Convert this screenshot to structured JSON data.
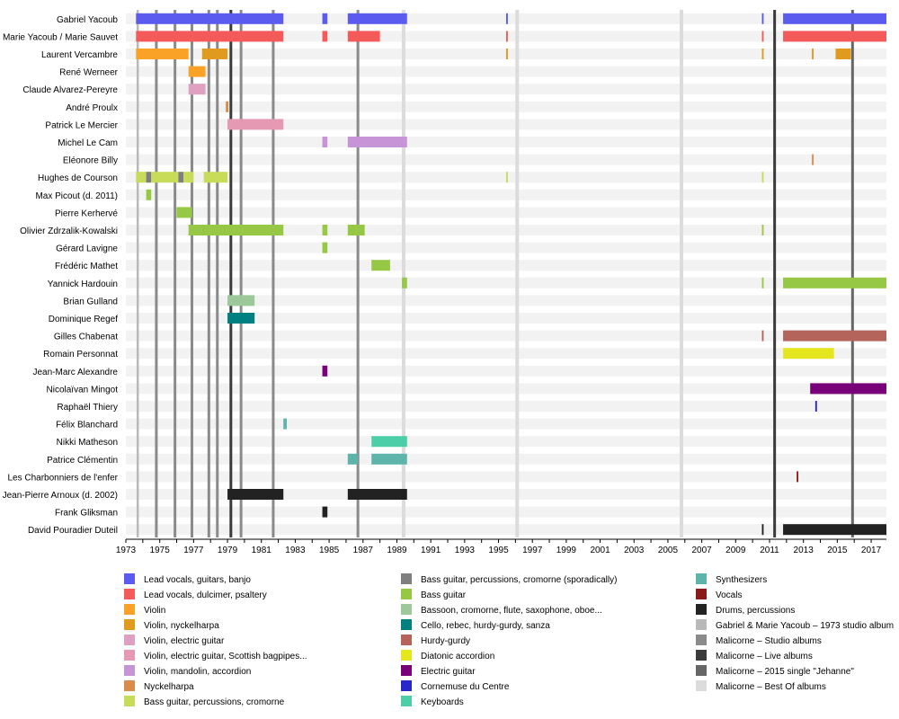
{
  "chart_data": {
    "type": "timeline",
    "title": "",
    "xlabel": "",
    "ylabel": "",
    "xlim": [
      1973.0,
      2017.9
    ],
    "x_ticks": [
      1973,
      1975,
      1977,
      1979,
      1981,
      1983,
      1985,
      1987,
      1989,
      1991,
      1993,
      1995,
      1997,
      1999,
      2001,
      2003,
      2005,
      2007,
      2009,
      2011,
      2013,
      2015,
      2017
    ],
    "members": [
      "Gabriel Yacoub",
      "Marie Yacoub / Marie Sauvet",
      "Laurent Vercambre",
      "René Werneer",
      "Claude Alvarez-Pereyre",
      "André Proulx",
      "Patrick Le Mercier",
      "Michel Le Cam",
      "Eléonore Billy",
      "Hughes de Courson",
      "Max Picout (d. 2011)",
      "Pierre Kerhervé",
      "Olivier Zdrzalik-Kowalski",
      "Gérard Lavigne",
      "Frédéric Mathet",
      "Yannick Hardouin",
      "Brian Gulland",
      "Dominique Regef",
      "Gilles Chabenat",
      "Romain Personnat",
      "Jean-Marc Alexandre",
      "Nicolaïvan Mingot",
      "Raphaël Thiery",
      "Félix Blanchard",
      "Nikki Matheson",
      "Patrice Clémentin",
      "Les Charbonniers de l'enfer",
      "Jean-Pierre Arnoux (d. 2002)",
      "Frank Gliksman",
      "David Pouradier Duteil"
    ],
    "legend": [
      {
        "label": "Lead vocals, guitars, banjo",
        "color": "#5b5bf0"
      },
      {
        "label": "Lead vocals, dulcimer, psaltery",
        "color": "#f55a5a"
      },
      {
        "label": "Violin",
        "color": "#f9a227"
      },
      {
        "label": "Violin, nyckelharpa",
        "color": "#e09a1e"
      },
      {
        "label": "Violin, electric guitar",
        "color": "#e0a0c0"
      },
      {
        "label": "Violin, electric guitar, Scottish bagpipes...",
        "color": "#e699b3"
      },
      {
        "label": "Violin, mandolin, accordion",
        "color": "#c894d8"
      },
      {
        "label": "Nyckelharpa",
        "color": "#d98c4a"
      },
      {
        "label": "Bass guitar, percussions, cromorne",
        "color": "#c8dc5a"
      },
      {
        "label": "Bass guitar, percussions, cromorne (sporadically)",
        "color": "#7f7f7f"
      },
      {
        "label": "Bass guitar",
        "color": "#96c846"
      },
      {
        "label": "Bassoon, cromorne, flute, saxophone, oboe...",
        "color": "#9cc89a"
      },
      {
        "label": "Cello, rebec, hurdy-gurdy, sanza",
        "color": "#008080"
      },
      {
        "label": "Hurdy-gurdy",
        "color": "#b4645a"
      },
      {
        "label": "Diatonic accordion",
        "color": "#e6e61e"
      },
      {
        "label": "Electric guitar",
        "color": "#780078"
      },
      {
        "label": "Cornemuse du Centre",
        "color": "#2828c8"
      },
      {
        "label": "Keyboards",
        "color": "#4ccfa8"
      },
      {
        "label": "Synthesizers",
        "color": "#5cb4aa"
      },
      {
        "label": "Vocals",
        "color": "#8b1a1a"
      },
      {
        "label": "Drums, percussions",
        "color": "#222222"
      },
      {
        "label": "Gabriel & Marie Yacoub – 1973 studio album",
        "color": "#b9b9b9"
      },
      {
        "label": "Malicorne – Studio albums",
        "color": "#8a8a8a"
      },
      {
        "label": "Malicorne – Live albums",
        "color": "#3a3a3a"
      },
      {
        "label": "Malicorne – 2015 single \"Jehanne\"",
        "color": "#666666"
      },
      {
        "label": "Malicorne – Best Of albums",
        "color": "#dcdcdc"
      }
    ],
    "bars": [
      {
        "member": "Gabriel Yacoub",
        "start": 1973.6,
        "end": 1982.3,
        "series": "Lead vocals, guitars, banjo"
      },
      {
        "member": "Gabriel Yacoub",
        "start": 1984.6,
        "end": 1984.9,
        "series": "Lead vocals, guitars, banjo"
      },
      {
        "member": "Gabriel Yacoub",
        "start": 1986.1,
        "end": 1989.6,
        "series": "Lead vocals, guitars, banjo"
      },
      {
        "member": "Gabriel Yacoub",
        "start": 1995.45,
        "end": 1995.55,
        "series": "Lead vocals, guitars, banjo"
      },
      {
        "member": "Gabriel Yacoub",
        "start": 2010.55,
        "end": 2010.65,
        "series": "Lead vocals, guitars, banjo"
      },
      {
        "member": "Gabriel Yacoub",
        "start": 2011.8,
        "end": 2017.9,
        "series": "Lead vocals, guitars, banjo"
      },
      {
        "member": "Marie Yacoub / Marie Sauvet",
        "start": 1973.6,
        "end": 1982.3,
        "series": "Lead vocals, dulcimer, psaltery"
      },
      {
        "member": "Marie Yacoub / Marie Sauvet",
        "start": 1984.6,
        "end": 1984.9,
        "series": "Lead vocals, dulcimer, psaltery"
      },
      {
        "member": "Marie Yacoub / Marie Sauvet",
        "start": 1986.1,
        "end": 1988.0,
        "series": "Lead vocals, dulcimer, psaltery"
      },
      {
        "member": "Marie Yacoub / Marie Sauvet",
        "start": 1995.45,
        "end": 1995.55,
        "series": "Lead vocals, dulcimer, psaltery"
      },
      {
        "member": "Marie Yacoub / Marie Sauvet",
        "start": 2010.55,
        "end": 2010.65,
        "series": "Lead vocals, dulcimer, psaltery"
      },
      {
        "member": "Marie Yacoub / Marie Sauvet",
        "start": 2011.8,
        "end": 2017.9,
        "series": "Lead vocals, dulcimer, psaltery"
      },
      {
        "member": "Laurent Vercambre",
        "start": 1973.6,
        "end": 1976.7,
        "series": "Violin"
      },
      {
        "member": "Laurent Vercambre",
        "start": 1977.5,
        "end": 1979.0,
        "series": "Violin, nyckelharpa"
      },
      {
        "member": "Laurent Vercambre",
        "start": 1995.45,
        "end": 1995.55,
        "series": "Violin, nyckelharpa"
      },
      {
        "member": "Laurent Vercambre",
        "start": 2010.55,
        "end": 2010.65,
        "series": "Violin, nyckelharpa"
      },
      {
        "member": "Laurent Vercambre",
        "start": 2013.5,
        "end": 2013.6,
        "series": "Violin, nyckelharpa"
      },
      {
        "member": "Laurent Vercambre",
        "start": 2014.9,
        "end": 2015.8,
        "series": "Violin, nyckelharpa"
      },
      {
        "member": "René Werneer",
        "start": 1976.7,
        "end": 1977.7,
        "series": "Violin"
      },
      {
        "member": "Claude Alvarez-Pereyre",
        "start": 1976.7,
        "end": 1977.7,
        "series": "Violin, electric guitar"
      },
      {
        "member": "André Proulx",
        "start": 1978.9,
        "end": 1979.05,
        "series": "Nyckelharpa"
      },
      {
        "member": "Patrick Le Mercier",
        "start": 1979.0,
        "end": 1982.3,
        "series": "Violin, electric guitar, Scottish bagpipes..."
      },
      {
        "member": "Michel Le Cam",
        "start": 1984.6,
        "end": 1984.9,
        "series": "Violin, mandolin, accordion"
      },
      {
        "member": "Michel Le Cam",
        "start": 1986.1,
        "end": 1989.6,
        "series": "Violin, mandolin, accordion"
      },
      {
        "member": "Eléonore Billy",
        "start": 2013.5,
        "end": 2013.6,
        "series": "Nyckelharpa"
      },
      {
        "member": "Hughes de Courson",
        "start": 1973.6,
        "end": 1974.2,
        "series": "Bass guitar, percussions, cromorne"
      },
      {
        "member": "Hughes de Courson",
        "start": 1974.2,
        "end": 1974.5,
        "series": "Bass guitar, percussions, cromorne (sporadically)"
      },
      {
        "member": "Hughes de Courson",
        "start": 1974.5,
        "end": 1976.1,
        "series": "Bass guitar, percussions, cromorne"
      },
      {
        "member": "Hughes de Courson",
        "start": 1976.1,
        "end": 1976.4,
        "series": "Bass guitar, percussions, cromorne (sporadically)"
      },
      {
        "member": "Hughes de Courson",
        "start": 1976.4,
        "end": 1977.0,
        "series": "Bass guitar, percussions, cromorne"
      },
      {
        "member": "Hughes de Courson",
        "start": 1977.6,
        "end": 1979.0,
        "series": "Bass guitar, percussions, cromorne"
      },
      {
        "member": "Hughes de Courson",
        "start": 1995.45,
        "end": 1995.55,
        "series": "Bass guitar, percussions, cromorne"
      },
      {
        "member": "Hughes de Courson",
        "start": 2010.55,
        "end": 2010.65,
        "series": "Bass guitar, percussions, cromorne"
      },
      {
        "member": "Max Picout (d. 2011)",
        "start": 1974.2,
        "end": 1974.5,
        "series": "Bass guitar"
      },
      {
        "member": "Pierre Kerhervé",
        "start": 1976.0,
        "end": 1976.9,
        "series": "Bass guitar"
      },
      {
        "member": "Olivier Zdrzalik-Kowalski",
        "start": 1976.7,
        "end": 1982.3,
        "series": "Bass guitar"
      },
      {
        "member": "Olivier Zdrzalik-Kowalski",
        "start": 1984.6,
        "end": 1984.9,
        "series": "Bass guitar"
      },
      {
        "member": "Olivier Zdrzalik-Kowalski",
        "start": 1986.1,
        "end": 1987.1,
        "series": "Bass guitar"
      },
      {
        "member": "Olivier Zdrzalik-Kowalski",
        "start": 2010.55,
        "end": 2010.65,
        "series": "Bass guitar"
      },
      {
        "member": "Gérard Lavigne",
        "start": 1984.6,
        "end": 1984.9,
        "series": "Bass guitar"
      },
      {
        "member": "Frédéric Mathet",
        "start": 1987.5,
        "end": 1988.6,
        "series": "Bass guitar"
      },
      {
        "member": "Yannick Hardouin",
        "start": 1989.3,
        "end": 1989.6,
        "series": "Bass guitar"
      },
      {
        "member": "Yannick Hardouin",
        "start": 2010.55,
        "end": 2010.65,
        "series": "Bass guitar"
      },
      {
        "member": "Yannick Hardouin",
        "start": 2011.8,
        "end": 2017.9,
        "series": "Bass guitar"
      },
      {
        "member": "Brian Gulland",
        "start": 1979.0,
        "end": 1980.6,
        "series": "Bassoon, cromorne, flute, saxophone, oboe..."
      },
      {
        "member": "Dominique Regef",
        "start": 1979.0,
        "end": 1980.6,
        "series": "Cello, rebec, hurdy-gurdy, sanza"
      },
      {
        "member": "Gilles Chabenat",
        "start": 2010.55,
        "end": 2010.65,
        "series": "Hurdy-gurdy"
      },
      {
        "member": "Gilles Chabenat",
        "start": 2011.8,
        "end": 2017.9,
        "series": "Hurdy-gurdy"
      },
      {
        "member": "Romain Personnat",
        "start": 2011.8,
        "end": 2014.8,
        "series": "Diatonic accordion"
      },
      {
        "member": "Jean-Marc Alexandre",
        "start": 1984.6,
        "end": 1984.9,
        "series": "Electric guitar"
      },
      {
        "member": "Nicolaïvan Mingot",
        "start": 2013.4,
        "end": 2017.9,
        "series": "Electric guitar"
      },
      {
        "member": "Raphaël Thiery",
        "start": 2013.7,
        "end": 2013.8,
        "series": "Cornemuse du Centre"
      },
      {
        "member": "Félix Blanchard",
        "start": 1982.3,
        "end": 1982.5,
        "series": "Synthesizers"
      },
      {
        "member": "Nikki Matheson",
        "start": 1987.5,
        "end": 1989.6,
        "series": "Keyboards"
      },
      {
        "member": "Patrice Clémentin",
        "start": 1986.1,
        "end": 1986.7,
        "series": "Synthesizers"
      },
      {
        "member": "Patrice Clémentin",
        "start": 1987.5,
        "end": 1989.6,
        "series": "Synthesizers"
      },
      {
        "member": "Les Charbonniers de l'enfer",
        "start": 2012.6,
        "end": 2012.7,
        "series": "Vocals"
      },
      {
        "member": "Jean-Pierre Arnoux (d. 2002)",
        "start": 1979.0,
        "end": 1982.3,
        "series": "Drums, percussions"
      },
      {
        "member": "Jean-Pierre Arnoux (d. 2002)",
        "start": 1986.1,
        "end": 1989.6,
        "series": "Drums, percussions"
      },
      {
        "member": "Frank Gliksman",
        "start": 1984.6,
        "end": 1984.9,
        "series": "Drums, percussions"
      },
      {
        "member": "David Pouradier Duteil",
        "start": 2010.55,
        "end": 2010.65,
        "series": "Drums, percussions"
      },
      {
        "member": "David Pouradier Duteil",
        "start": 2011.8,
        "end": 2017.9,
        "series": "Drums, percussions"
      }
    ],
    "events": [
      {
        "x": 1973.7,
        "series": "Gabriel & Marie Yacoub – 1973 studio album"
      },
      {
        "x": 1974.8,
        "series": "Malicorne – Studio albums"
      },
      {
        "x": 1975.9,
        "series": "Malicorne – Studio albums"
      },
      {
        "x": 1976.9,
        "series": "Malicorne – Studio albums"
      },
      {
        "x": 1977.9,
        "series": "Malicorne – Studio albums"
      },
      {
        "x": 1978.4,
        "series": "Malicorne – Studio albums"
      },
      {
        "x": 1979.2,
        "series": "Malicorne – Live albums"
      },
      {
        "x": 1979.8,
        "series": "Malicorne – Studio albums"
      },
      {
        "x": 1981.7,
        "series": "Malicorne – Studio albums"
      },
      {
        "x": 1986.7,
        "series": "Malicorne – Studio albums"
      },
      {
        "x": 1989.4,
        "series": "Malicorne – Best Of albums"
      },
      {
        "x": 1996.1,
        "series": "Malicorne – Best Of albums"
      },
      {
        "x": 2005.8,
        "series": "Malicorne – Best Of albums"
      },
      {
        "x": 2011.3,
        "series": "Malicorne – Live albums"
      },
      {
        "x": 2015.9,
        "series": "Malicorne – 2015 single \"Jehanne\""
      }
    ]
  }
}
